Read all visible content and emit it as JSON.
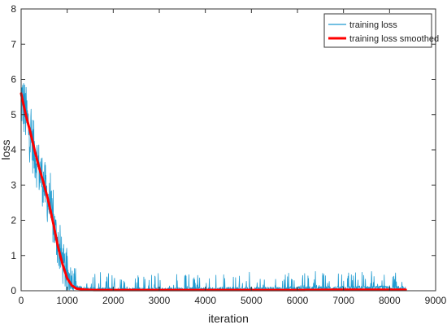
{
  "chart_data": {
    "type": "line",
    "xlabel": "iteration",
    "ylabel": "loss",
    "xlim": [
      0,
      9000
    ],
    "ylim": [
      0,
      8
    ],
    "xticks": [
      "0",
      "1000",
      "2000",
      "3000",
      "4000",
      "5000",
      "6000",
      "7000",
      "8000",
      "9000"
    ],
    "yticks": [
      "0",
      "1",
      "2",
      "3",
      "4",
      "5",
      "6",
      "7",
      "8"
    ],
    "grid": false,
    "legend_position": "top-right",
    "series": [
      {
        "name": "training loss",
        "color": "#1f9bd0",
        "style": "noisy",
        "x": [
          0,
          100,
          200,
          300,
          400,
          500,
          600,
          700,
          800,
          900,
          1000,
          1100,
          1200,
          1400,
          1600,
          2000,
          3000,
          4000,
          5000,
          6000,
          7000,
          8000,
          8350
        ],
        "values": [
          5.5,
          5.0,
          4.4,
          3.9,
          3.4,
          3.0,
          2.5,
          1.9,
          1.3,
          0.8,
          0.4,
          0.2,
          0.1,
          0.05,
          0.04,
          0.03,
          0.03,
          0.04,
          0.04,
          0.06,
          0.07,
          0.08,
          0.08
        ]
      },
      {
        "name": "training loss smoothed",
        "color": "#ff0000",
        "style": "smooth",
        "x": [
          0,
          100,
          200,
          300,
          400,
          500,
          600,
          700,
          800,
          900,
          1000,
          1100,
          1200,
          1400,
          1600,
          2000,
          3000,
          4000,
          5000,
          6000,
          7000,
          8000,
          8350
        ],
        "values": [
          5.6,
          5.0,
          4.5,
          3.95,
          3.45,
          3.0,
          2.5,
          1.9,
          1.25,
          0.75,
          0.35,
          0.15,
          0.06,
          0.03,
          0.02,
          0.02,
          0.02,
          0.02,
          0.02,
          0.02,
          0.03,
          0.03,
          0.03
        ]
      }
    ]
  }
}
